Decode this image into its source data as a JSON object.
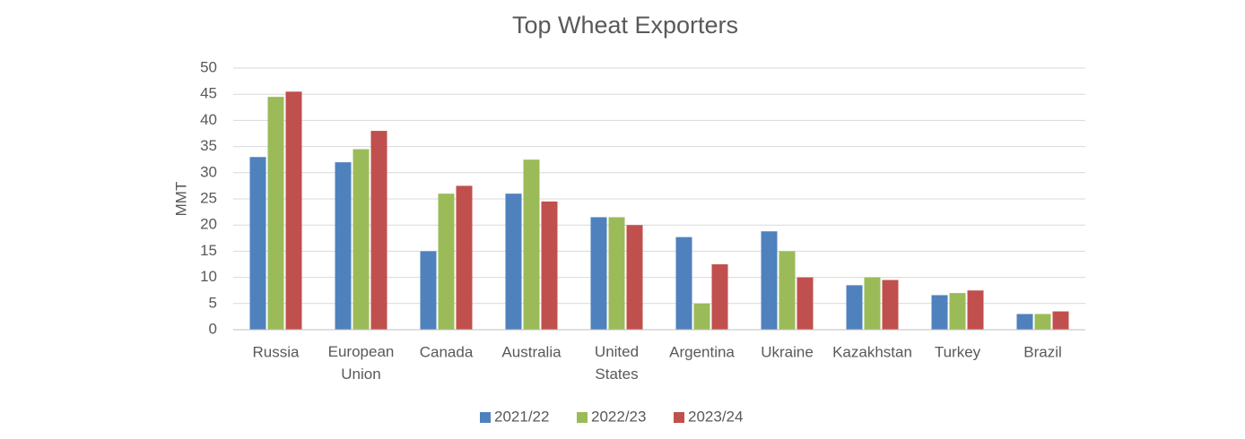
{
  "chart_data": {
    "type": "bar",
    "title": "Top Wheat Exporters",
    "y_label": "MMT",
    "categories": [
      "Russia",
      "European Union",
      "Canada",
      "Australia",
      "United States",
      "Argentina",
      "Ukraine",
      "Kazakhstan",
      "Turkey",
      "Brazil"
    ],
    "series": [
      {
        "name": "2021/22",
        "color": "#4f81bd",
        "values": [
          33,
          32,
          15,
          26,
          21.5,
          17.7,
          18.8,
          8.5,
          6.6,
          3
        ]
      },
      {
        "name": "2022/23",
        "color": "#9bbb59",
        "values": [
          44.5,
          34.5,
          26,
          32.5,
          21.5,
          5,
          15,
          10,
          7,
          3
        ]
      },
      {
        "name": "2023/24",
        "color": "#c0504d",
        "values": [
          45.5,
          38,
          27.5,
          24.5,
          20,
          12.5,
          10,
          9.5,
          7.5,
          3.5
        ]
      }
    ],
    "ylim": [
      0,
      50
    ],
    "yticks": [
      0,
      5,
      10,
      15,
      20,
      25,
      30,
      35,
      40,
      45,
      50
    ],
    "grid": true,
    "legend": "bottom"
  }
}
